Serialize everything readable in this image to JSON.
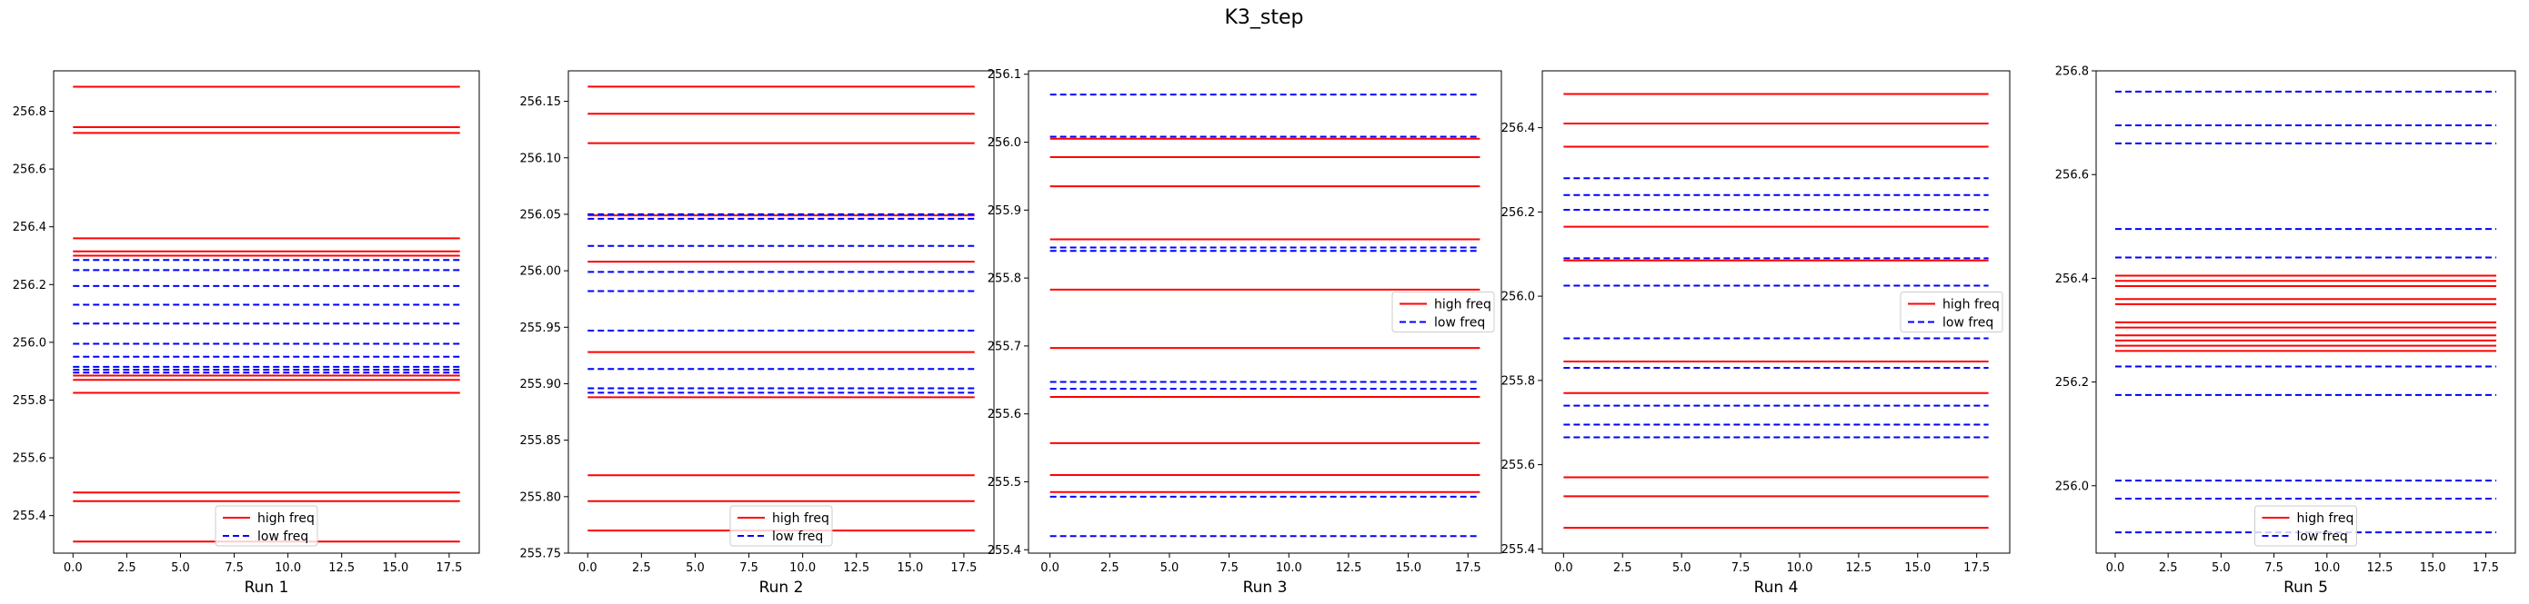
{
  "figure": {
    "title": "K3_step"
  },
  "legend_labels": {
    "high": "high freq",
    "low": "low freq"
  },
  "colors": {
    "high": "#ff0000",
    "low": "#0000ff"
  },
  "chart_data": [
    {
      "type": "line",
      "xlabel": "Run 1",
      "xlim": [
        -0.9,
        18.9
      ],
      "ylim": [
        255.27,
        256.94
      ],
      "xticks": [
        0.0,
        2.5,
        5.0,
        7.5,
        10.0,
        12.5,
        15.0,
        17.5
      ],
      "xtick_labels": [
        "0.0",
        "2.5",
        "5.0",
        "7.5",
        "10.0",
        "12.5",
        "15.0",
        "17.5"
      ],
      "yticks": [
        255.4,
        255.6,
        255.8,
        256.0,
        256.2,
        256.4,
        256.6,
        256.8
      ],
      "ytick_labels": [
        "255.4",
        "255.6",
        "255.8",
        "256.0",
        "256.2",
        "256.4",
        "256.6",
        "256.8"
      ],
      "x_range": [
        0,
        18
      ],
      "legend_loc": "lower center",
      "high_freq": [
        256.885,
        256.745,
        256.725,
        256.36,
        256.315,
        256.3,
        255.885,
        255.87,
        255.825,
        255.48,
        255.45,
        255.31
      ],
      "low_freq": [
        256.285,
        256.25,
        256.195,
        256.13,
        256.065,
        255.995,
        255.95,
        255.915,
        255.905,
        255.895
      ]
    },
    {
      "type": "line",
      "xlabel": "Run 2",
      "xlim": [
        -0.9,
        18.9
      ],
      "ylim": [
        255.75,
        256.177
      ],
      "xticks": [
        0.0,
        2.5,
        5.0,
        7.5,
        10.0,
        12.5,
        15.0,
        17.5
      ],
      "xtick_labels": [
        "0.0",
        "2.5",
        "5.0",
        "7.5",
        "10.0",
        "12.5",
        "15.0",
        "17.5"
      ],
      "yticks": [
        255.75,
        255.8,
        255.85,
        255.9,
        255.95,
        256.0,
        256.05,
        256.1,
        256.15
      ],
      "ytick_labels": [
        "255.75",
        "255.80",
        "255.85",
        "255.90",
        "255.95",
        "256.00",
        "256.05",
        "256.10",
        "256.15"
      ],
      "x_range": [
        0,
        18
      ],
      "legend_loc": "lower center",
      "high_freq": [
        256.163,
        256.139,
        256.113,
        256.049,
        256.008,
        255.928,
        255.888,
        255.819,
        255.796,
        255.77
      ],
      "low_freq": [
        256.05,
        256.046,
        256.022,
        255.999,
        255.982,
        255.947,
        255.913,
        255.896,
        255.892
      ]
    },
    {
      "type": "line",
      "xlabel": "Run 3",
      "xlim": [
        -0.9,
        18.9
      ],
      "ylim": [
        255.395,
        256.105
      ],
      "xticks": [
        0.0,
        2.5,
        5.0,
        7.5,
        10.0,
        12.5,
        15.0,
        17.5
      ],
      "xtick_labels": [
        "0.0",
        "2.5",
        "5.0",
        "7.5",
        "10.0",
        "12.5",
        "15.0",
        "17.5"
      ],
      "yticks": [
        255.4,
        255.5,
        255.6,
        255.7,
        255.8,
        255.9,
        256.0,
        256.1
      ],
      "ytick_labels": [
        "255.4",
        "255.5",
        "255.6",
        "255.7",
        "255.8",
        "255.9",
        "256.0",
        "256.1"
      ],
      "x_range": [
        0,
        18
      ],
      "legend_loc": "center right",
      "high_freq": [
        256.005,
        255.978,
        255.935,
        255.857,
        255.783,
        255.697,
        255.625,
        255.557,
        255.51,
        255.485
      ],
      "low_freq": [
        256.07,
        256.008,
        255.845,
        255.84,
        255.647,
        255.637,
        255.478,
        255.42
      ]
    },
    {
      "type": "line",
      "xlabel": "Run 4",
      "xlim": [
        -0.9,
        18.9
      ],
      "ylim": [
        255.39,
        256.535
      ],
      "xticks": [
        0.0,
        2.5,
        5.0,
        7.5,
        10.0,
        12.5,
        15.0,
        17.5
      ],
      "xtick_labels": [
        "0.0",
        "2.5",
        "5.0",
        "7.5",
        "10.0",
        "12.5",
        "15.0",
        "17.5"
      ],
      "yticks": [
        255.4,
        255.6,
        255.8,
        256.0,
        256.2,
        256.4
      ],
      "ytick_labels": [
        "255.4",
        "255.6",
        "255.8",
        "256.0",
        "256.2",
        "256.4"
      ],
      "x_range": [
        0,
        18
      ],
      "legend_loc": "center right",
      "high_freq": [
        256.48,
        256.41,
        256.355,
        256.165,
        256.085,
        255.845,
        255.77,
        255.57,
        255.525,
        255.45
      ],
      "low_freq": [
        256.28,
        256.24,
        256.205,
        256.09,
        256.025,
        255.9,
        255.83,
        255.74,
        255.695,
        255.665
      ]
    },
    {
      "type": "line",
      "xlabel": "Run 5",
      "xlim": [
        -0.9,
        18.9
      ],
      "ylim": [
        255.87,
        256.8
      ],
      "xticks": [
        0.0,
        2.5,
        5.0,
        7.5,
        10.0,
        12.5,
        15.0,
        17.5
      ],
      "xtick_labels": [
        "0.0",
        "2.5",
        "5.0",
        "7.5",
        "10.0",
        "12.5",
        "15.0",
        "17.5"
      ],
      "yticks": [
        256.0,
        256.2,
        256.4,
        256.6,
        256.8
      ],
      "ytick_labels": [
        "256.0",
        "256.2",
        "256.4",
        "256.6",
        "256.8"
      ],
      "x_range": [
        0,
        18
      ],
      "legend_loc": "lower center",
      "high_freq": [
        256.405,
        256.395,
        256.385,
        256.36,
        256.35,
        256.315,
        256.305,
        256.29,
        256.28,
        256.27,
        256.26
      ],
      "low_freq": [
        256.76,
        256.695,
        256.66,
        256.495,
        256.44,
        256.23,
        256.175,
        256.01,
        255.975,
        255.91
      ]
    }
  ]
}
